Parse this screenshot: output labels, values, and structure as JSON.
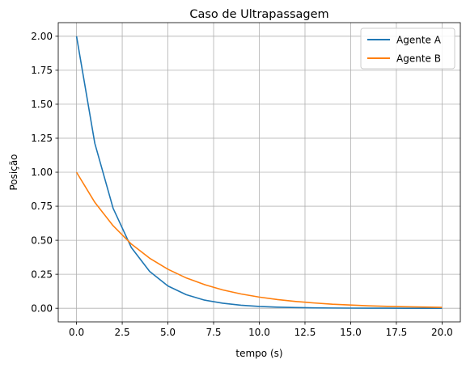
{
  "chart_data": {
    "type": "line",
    "title": "Caso de Ultrapassagem",
    "xlabel": "tempo (s)",
    "ylabel": "Posição",
    "xlim": [
      -1.0,
      21.0
    ],
    "ylim": [
      -0.1,
      2.1
    ],
    "grid": true,
    "legend_position": "top-right",
    "xticks": [
      0.0,
      2.5,
      5.0,
      7.5,
      10.0,
      12.5,
      15.0,
      17.5,
      20.0
    ],
    "xtick_labels": [
      "0.0",
      "2.5",
      "5.0",
      "7.5",
      "10.0",
      "12.5",
      "15.0",
      "17.5",
      "20.0"
    ],
    "yticks": [
      0.0,
      0.25,
      0.5,
      0.75,
      1.0,
      1.25,
      1.5,
      1.75,
      2.0
    ],
    "ytick_labels": [
      "0.00",
      "0.25",
      "0.50",
      "0.75",
      "1.00",
      "1.25",
      "1.50",
      "1.75",
      "2.00"
    ],
    "x": [
      0,
      1,
      2,
      3,
      4,
      5,
      6,
      7,
      8,
      9,
      10,
      11,
      12,
      13,
      14,
      15,
      16,
      17,
      18,
      19,
      20
    ],
    "series": [
      {
        "name": "Agente A",
        "color": "#1f77b4",
        "values": [
          2.0,
          1.213,
          0.736,
          0.446,
          0.271,
          0.164,
          0.1,
          0.06,
          0.037,
          0.022,
          0.0135,
          0.0082,
          0.005,
          0.003,
          0.0018,
          0.0011,
          0.0007,
          0.0004,
          0.0002,
          0.0001,
          0.0001
        ]
      },
      {
        "name": "Agente B",
        "color": "#ff7f0e",
        "values": [
          1.0,
          0.779,
          0.607,
          0.472,
          0.368,
          0.287,
          0.223,
          0.174,
          0.135,
          0.105,
          0.082,
          0.064,
          0.05,
          0.039,
          0.03,
          0.024,
          0.018,
          0.014,
          0.011,
          0.0087,
          0.0067
        ]
      }
    ]
  }
}
